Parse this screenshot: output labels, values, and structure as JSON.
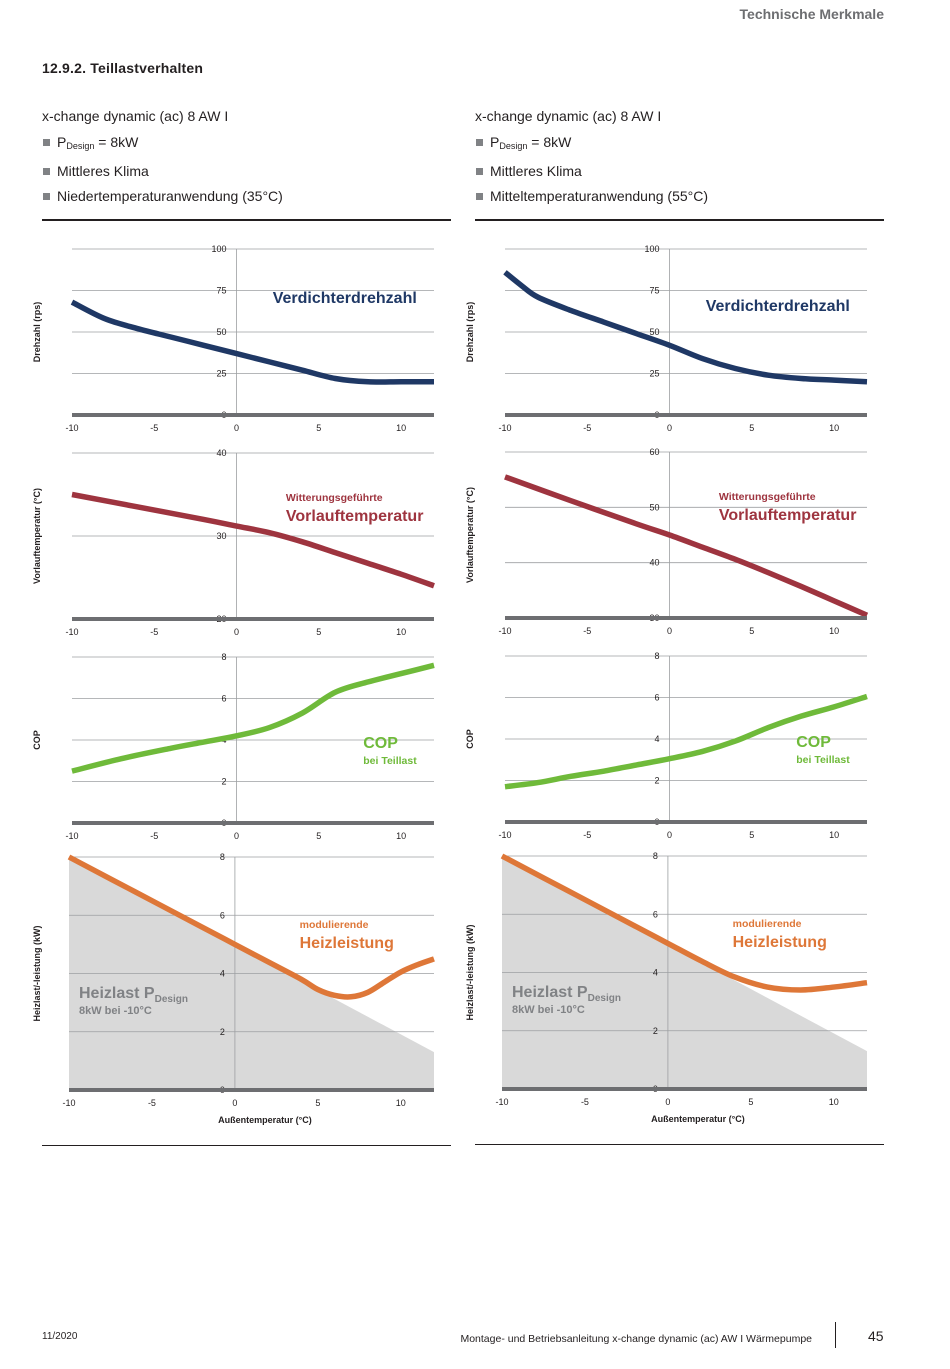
{
  "header": {
    "section_label": "Technische Merkmale"
  },
  "section": {
    "title": "12.9.2.   Teillastverhalten"
  },
  "columns": [
    {
      "model": "x-change dynamic (ac) 8 AW I",
      "pdesign": {
        "p": "P",
        "sub": "Design",
        "rest": " = 8kW"
      },
      "climate": "Mittleres Klima",
      "application": "Niedertemperaturanwendung (35°C)"
    },
    {
      "model": "x-change dynamic (ac) 8 AW I",
      "pdesign": {
        "p": "P",
        "sub": "Design",
        "rest": " = 8kW"
      },
      "climate": "Mittleres Klima",
      "application": "Mitteltemperaturanwendung (55°C)"
    }
  ],
  "colors": {
    "speed": "#1f3865",
    "flow": "#9e343f",
    "cop": "#6fba3a",
    "heat": "#de7738",
    "load_area": "#d9d9d9",
    "grid": "#9d9fa2",
    "baseline": "#6d6e71"
  },
  "chart_data": [
    {
      "id": "speed-35",
      "column": 0,
      "type": "line",
      "ylabel": "Drehzahl (rps)",
      "xlim": [
        -10,
        12
      ],
      "ylim": [
        0,
        100
      ],
      "xticks": [
        -10,
        -5,
        0,
        5,
        10
      ],
      "yticks": [
        0,
        25,
        50,
        75,
        100
      ],
      "annotation": {
        "small": "",
        "big": "Verdichterdrehzahl"
      },
      "series": [
        {
          "color": "speed",
          "x": [
            -10,
            -8,
            -6,
            -4,
            -2,
            0,
            2,
            4,
            6,
            8,
            10,
            12
          ],
          "y": [
            68,
            58,
            52,
            47,
            42,
            37,
            32,
            27,
            22,
            20,
            20,
            20
          ]
        }
      ]
    },
    {
      "id": "flow-35",
      "column": 0,
      "type": "line",
      "ylabel": "Vorlauftemperatur (°C)",
      "xlim": [
        -10,
        12
      ],
      "ylim": [
        20,
        40
      ],
      "xticks": [
        -10,
        -5,
        0,
        5,
        10
      ],
      "yticks": [
        20,
        30,
        40
      ],
      "annotation": {
        "small": "Witterungsgeführte",
        "big": "Vorlauftemperatur"
      },
      "series": [
        {
          "color": "flow",
          "x": [
            -10,
            -6,
            -2,
            0,
            2,
            4,
            6,
            8,
            10,
            12
          ],
          "y": [
            35,
            33.5,
            32,
            31.2,
            30.4,
            29.3,
            28,
            26.7,
            25.4,
            24
          ]
        }
      ]
    },
    {
      "id": "cop-35",
      "column": 0,
      "type": "line",
      "ylabel": "COP",
      "xlim": [
        -10,
        12
      ],
      "ylim": [
        0,
        8
      ],
      "xticks": [
        -10,
        -5,
        0,
        5,
        10
      ],
      "yticks": [
        0,
        2,
        4,
        6,
        8
      ],
      "annotation": {
        "small": "bei Teillast",
        "big": "COP"
      },
      "series": [
        {
          "color": "cop",
          "x": [
            -10,
            -7,
            -4,
            -2,
            0,
            2,
            4,
            6,
            8,
            10,
            12
          ],
          "y": [
            2.5,
            3.1,
            3.6,
            3.9,
            4.2,
            4.6,
            5.3,
            6.3,
            6.8,
            7.2,
            7.6
          ]
        }
      ]
    },
    {
      "id": "heat-35",
      "column": 0,
      "type": "area",
      "ylabel": "Heizlast/-leistung (kW)",
      "xlabel": "Außentemperatur (°C)",
      "xlim": [
        -10,
        12
      ],
      "ylim": [
        0,
        8
      ],
      "xticks": [
        -10,
        -5,
        0,
        5,
        10
      ],
      "yticks": [
        0,
        2,
        4,
        6,
        8
      ],
      "annotation": {
        "small": "modulierende",
        "big": "Heizleistung"
      },
      "load_label": {
        "main": "Heizlast P",
        "sub": "Design",
        "note": "8kW bei -10°C"
      },
      "load_area": {
        "x": [
          -10,
          12
        ],
        "y": [
          8,
          1.3
        ]
      },
      "series": [
        {
          "color": "heat",
          "x": [
            -10,
            -6,
            -2,
            0,
            2,
            4,
            5,
            6,
            7,
            8,
            9,
            10,
            11,
            12
          ],
          "y": [
            8,
            6.8,
            5.6,
            5,
            4.4,
            3.8,
            3.45,
            3.25,
            3.2,
            3.35,
            3.7,
            4.05,
            4.3,
            4.5
          ]
        }
      ]
    },
    {
      "id": "speed-55",
      "column": 1,
      "type": "line",
      "ylabel": "Drehzahl (rps)",
      "xlim": [
        -10,
        12
      ],
      "ylim": [
        0,
        100
      ],
      "xticks": [
        -10,
        -5,
        0,
        5,
        10
      ],
      "yticks": [
        0,
        25,
        50,
        75,
        100
      ],
      "annotation": {
        "small": "",
        "big": "Verdichterdrehzahl"
      },
      "series": [
        {
          "color": "speed",
          "x": [
            -10,
            -9,
            -8,
            -6,
            -4,
            -2,
            0,
            2,
            4,
            6,
            8,
            10,
            12
          ],
          "y": [
            86,
            78,
            71,
            63,
            56,
            49,
            42,
            34,
            28,
            24,
            22,
            21,
            20
          ]
        }
      ]
    },
    {
      "id": "flow-55",
      "column": 1,
      "type": "line",
      "ylabel": "Vorlauftemperatur (°C)",
      "xlim": [
        -10,
        12
      ],
      "ylim": [
        30,
        60
      ],
      "xticks": [
        -10,
        -5,
        0,
        5,
        10
      ],
      "yticks": [
        30,
        40,
        50,
        60
      ],
      "annotation": {
        "small": "Witterungsgeführte",
        "big": "Vorlauftemperatur"
      },
      "series": [
        {
          "color": "flow",
          "x": [
            -10,
            -6,
            -2,
            0,
            2,
            4,
            6,
            8,
            10,
            12
          ],
          "y": [
            55.5,
            51.2,
            47,
            45,
            42.8,
            40.6,
            38.2,
            35.7,
            33.1,
            30.5
          ]
        }
      ]
    },
    {
      "id": "cop-55",
      "column": 1,
      "type": "line",
      "ylabel": "COP",
      "xlim": [
        -10,
        12
      ],
      "ylim": [
        0,
        8
      ],
      "xticks": [
        -10,
        -5,
        0,
        5,
        10
      ],
      "yticks": [
        0,
        2,
        4,
        6,
        8
      ],
      "annotation": {
        "small": "bei Teillast",
        "big": "COP"
      },
      "series": [
        {
          "color": "cop",
          "x": [
            -10,
            -8,
            -6,
            -4,
            -2,
            0,
            2,
            4,
            6,
            8,
            10,
            12
          ],
          "y": [
            1.7,
            1.9,
            2.2,
            2.45,
            2.75,
            3.05,
            3.4,
            3.9,
            4.55,
            5.1,
            5.55,
            6.05
          ]
        }
      ]
    },
    {
      "id": "heat-55",
      "column": 1,
      "type": "area",
      "ylabel": "Heizlast/-leistung (kW)",
      "xlabel": "Außentemperatur (°C)",
      "xlim": [
        -10,
        12
      ],
      "ylim": [
        0,
        8
      ],
      "xticks": [
        -10,
        -5,
        0,
        5,
        10
      ],
      "yticks": [
        0,
        2,
        4,
        6,
        8
      ],
      "annotation": {
        "small": "modulierende",
        "big": "Heizleistung"
      },
      "load_label": {
        "main": "Heizlast P",
        "sub": "Design",
        "note": "8kW bei -10°C"
      },
      "load_area": {
        "x": [
          -10,
          12
        ],
        "y": [
          8,
          1.3
        ]
      },
      "series": [
        {
          "color": "heat",
          "x": [
            -10,
            -6,
            -2,
            0,
            2,
            4,
            6,
            8,
            10,
            12
          ],
          "y": [
            8,
            6.8,
            5.6,
            5,
            4.4,
            3.85,
            3.5,
            3.4,
            3.5,
            3.65
          ]
        }
      ]
    }
  ],
  "footer": {
    "date": "11/2020",
    "manual": "Montage- und Betriebsanleitung x-change dynamic (ac) AW I Wärmepumpe",
    "page": "45"
  }
}
